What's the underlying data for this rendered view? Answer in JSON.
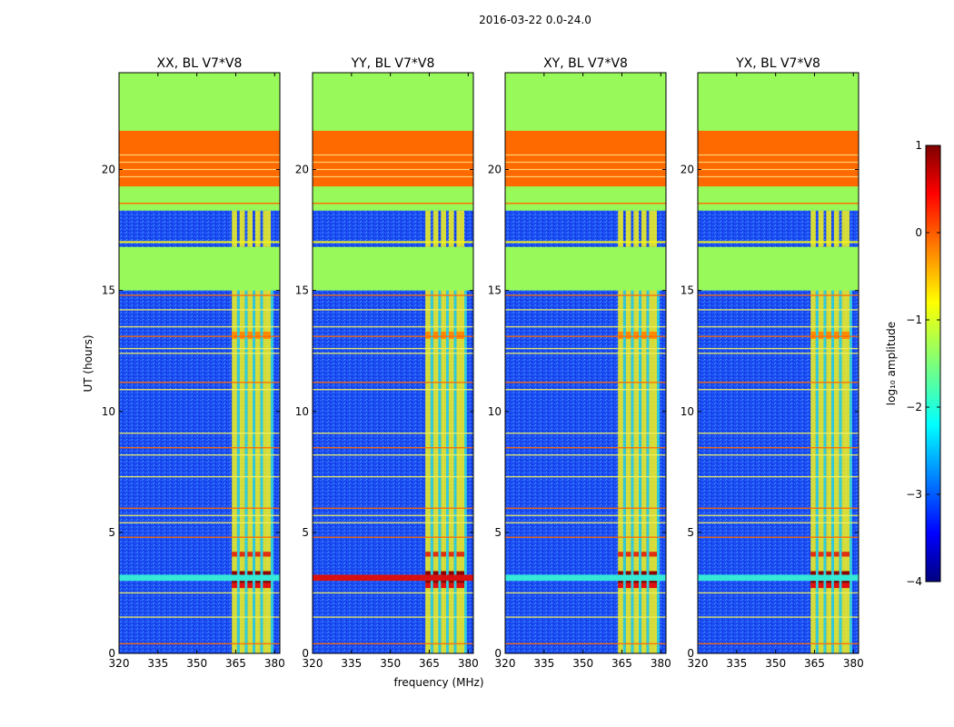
{
  "figure": {
    "suptitle": "2016-03-22 0.0-24.0"
  },
  "colors": {
    "flag_green": "#98fa5a",
    "flag_orange": "#ff6a00",
    "noise_blue": "#1a48f0",
    "hot": "#8b0000",
    "yellow": "#f4f41a",
    "cyan": "#34ead6"
  },
  "chart_data": [
    {
      "type": "heatmap",
      "title": "XX, BL V7*V8",
      "xlabel": "",
      "ylabel": "UT (hours)",
      "xlim": [
        320,
        382
      ],
      "ylim": [
        0,
        24
      ],
      "xticks": [
        "320",
        "335",
        "350",
        "365",
        "380"
      ],
      "yticks": [
        "0",
        "5",
        "10",
        "15",
        "20"
      ],
      "z_description": "log10 amplitude; flagged (constant) regions above 15 h"
    },
    {
      "type": "heatmap",
      "title": "YY, BL V7*V8",
      "xlabel": "frequency (MHz)",
      "ylabel": "",
      "xlim": [
        320,
        382
      ],
      "ylim": [
        0,
        24
      ],
      "xticks": [
        "320",
        "335",
        "350",
        "365",
        "380"
      ],
      "yticks": [
        "0",
        "5",
        "10",
        "15",
        "20"
      ]
    },
    {
      "type": "heatmap",
      "title": "XY, BL V7*V8",
      "xlabel": "",
      "ylabel": "",
      "xlim": [
        320,
        382
      ],
      "ylim": [
        0,
        24
      ],
      "xticks": [
        "320",
        "335",
        "350",
        "365",
        "380"
      ],
      "yticks": [
        "0",
        "5",
        "10",
        "15",
        "20"
      ]
    },
    {
      "type": "heatmap",
      "title": "YX, BL V7*V8",
      "xlabel": "",
      "ylabel": "",
      "xlim": [
        320,
        382
      ],
      "ylim": [
        0,
        24
      ],
      "xticks": [
        "320",
        "335",
        "350",
        "365",
        "380"
      ],
      "yticks": [
        "0",
        "5",
        "10",
        "15",
        "20"
      ]
    }
  ],
  "colorbar": {
    "label": "log₁₀ amplitude",
    "range": [
      -4,
      1
    ],
    "ticks": [
      "1",
      "0",
      "−1",
      "−2",
      "−3",
      "−4"
    ]
  }
}
